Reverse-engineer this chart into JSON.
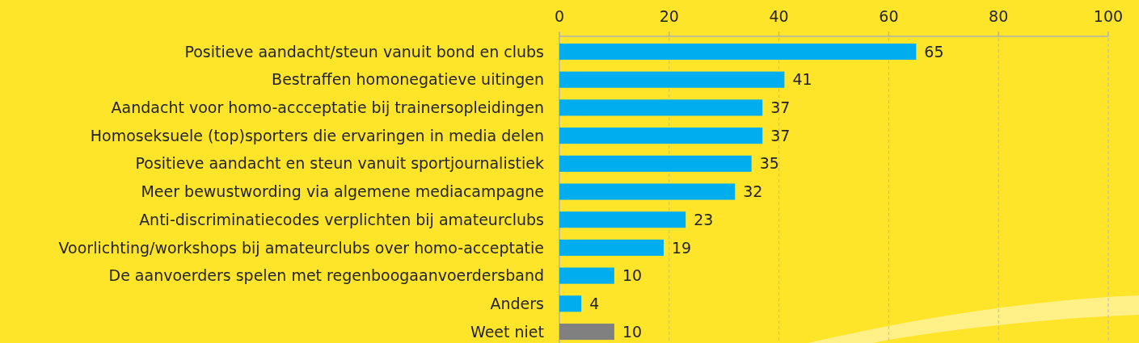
{
  "chart_data": {
    "type": "bar",
    "orientation": "horizontal",
    "categories": [
      "Positieve aandacht/steun vanuit bond en clubs",
      "Bestraffen homonegatieve uitingen",
      "Aandacht voor homo-accceptatie bij trainersopleidingen",
      "Homoseksuele (top)sporters die ervaringen in media delen",
      "Positieve aandacht en steun vanuit sportjournalistiek",
      "Meer bewustwording via algemene mediacampagne",
      "Anti-discriminatiecodes verplichten bij amateurclubs",
      "Voorlichting/workshops bij amateurclubs over homo-acceptatie",
      "De aanvoerders spelen met regenboogaanvoerdersband",
      "Anders",
      "Weet niet"
    ],
    "values": [
      65,
      41,
      37,
      37,
      35,
      32,
      23,
      19,
      10,
      4,
      10
    ],
    "colors": [
      "#00aeef",
      "#00aeef",
      "#00aeef",
      "#00aeef",
      "#00aeef",
      "#00aeef",
      "#00aeef",
      "#00aeef",
      "#00aeef",
      "#00aeef",
      "#808080"
    ],
    "xlim": [
      0,
      100
    ],
    "xticks": [
      0,
      20,
      40,
      60,
      80,
      100
    ],
    "grid": "x",
    "data_labels": true
  }
}
